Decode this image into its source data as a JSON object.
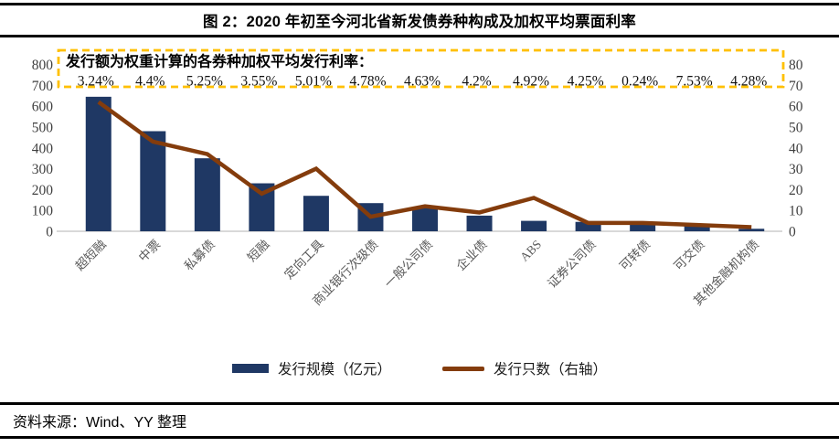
{
  "chart_data": {
    "type": "bar+line",
    "title": "图 2：2020 年初至今河北省新发债券种构成及加权平均票面利率",
    "categories": [
      "超短融",
      "中票",
      "私募债",
      "短融",
      "定向工具",
      "商业银行次级债",
      "一般公司债",
      "企业债",
      "ABS",
      "证券公司债",
      "可转债",
      "可交债",
      "其他金融机构债"
    ],
    "series": [
      {
        "name": "发行规模（亿元）",
        "type": "bar",
        "axis": "left",
        "color": "#1F3864",
        "values": [
          645,
          480,
          350,
          230,
          170,
          135,
          110,
          75,
          50,
          45,
          45,
          25,
          12
        ]
      },
      {
        "name": "发行只数（右轴）",
        "type": "line",
        "axis": "right",
        "color": "#843C0C",
        "values": [
          62,
          43,
          37,
          18,
          30,
          7,
          12,
          9,
          16,
          4,
          4,
          3,
          2
        ]
      }
    ],
    "weighted_avg_rates": [
      "3.24%",
      "4.4%",
      "5.25%",
      "3.55%",
      "5.01%",
      "4.78%",
      "4.63%",
      "4.2%",
      "4.92%",
      "4.25%",
      "0.24%",
      "7.53%",
      "4.28%"
    ],
    "left_axis": {
      "min": 0,
      "max": 800,
      "ticks": [
        0,
        100,
        200,
        300,
        400,
        500,
        600,
        700,
        800
      ]
    },
    "right_axis": {
      "min": 0,
      "max": 80,
      "ticks": [
        0,
        10,
        20,
        30,
        40,
        50,
        60,
        70,
        80
      ]
    },
    "grid": false,
    "legend_position": "bottom",
    "axis_line_color": "#D9D9D9",
    "tick_label_color": "#404040"
  },
  "annotation": {
    "heading": "发行额为权重计算的各券种加权平均发行利率：",
    "border_color": "#FFC000"
  },
  "legend": {
    "items": [
      {
        "label": "发行规模（亿元）"
      },
      {
        "label": "发行只数（右轴）"
      }
    ]
  },
  "footer": {
    "source": "资料来源：Wind、YY 整理"
  }
}
